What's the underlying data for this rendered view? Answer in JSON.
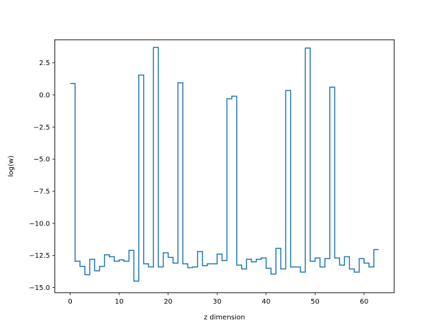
{
  "chart_data": {
    "type": "line",
    "drawstyle": "steps-post",
    "title": "",
    "xlabel": "z dimension",
    "ylabel": "log(w)",
    "xlim": [
      -3.15,
      66.15
    ],
    "ylim": [
      -15.4,
      4.3
    ],
    "x_ticks": [
      0,
      10,
      20,
      30,
      40,
      50,
      60
    ],
    "y_ticks": [
      -15.0,
      -12.5,
      -10.0,
      -7.5,
      -5.0,
      -2.5,
      0.0,
      2.5
    ],
    "x_tick_labels": [
      "0",
      "10",
      "20",
      "30",
      "40",
      "50",
      "60"
    ],
    "y_tick_labels": [
      "−15.0",
      "−12.5",
      "−10.0",
      "−7.5",
      "−5.0",
      "−2.5",
      "0.0",
      "2.5"
    ],
    "grid": false,
    "series": [
      {
        "color": "#1f77b4",
        "x": [
          0,
          1,
          2,
          3,
          4,
          5,
          6,
          7,
          8,
          9,
          10,
          11,
          12,
          13,
          14,
          15,
          16,
          17,
          18,
          19,
          20,
          21,
          22,
          23,
          24,
          25,
          26,
          27,
          28,
          29,
          30,
          31,
          32,
          33,
          34,
          35,
          36,
          37,
          38,
          39,
          40,
          41,
          42,
          43,
          44,
          45,
          46,
          47,
          48,
          49,
          50,
          51,
          52,
          53,
          54,
          55,
          56,
          57,
          58,
          59,
          60,
          61,
          62,
          63
        ],
        "values": [
          0.9,
          -12.95,
          -13.35,
          -14.0,
          -12.8,
          -13.7,
          -13.35,
          -12.45,
          -12.6,
          -12.95,
          -12.85,
          -12.95,
          -12.1,
          -14.5,
          1.55,
          -13.15,
          -13.4,
          3.7,
          -13.4,
          -12.3,
          -12.65,
          -13.1,
          0.95,
          -13.15,
          -13.45,
          -13.4,
          -12.2,
          -13.3,
          -13.15,
          -13.15,
          -12.4,
          -12.9,
          -0.3,
          -0.1,
          -13.25,
          -13.55,
          -12.8,
          -13.0,
          -12.8,
          -12.7,
          -13.5,
          -13.95,
          -11.95,
          -13.55,
          0.35,
          -13.4,
          -13.4,
          -13.8,
          3.65,
          -12.95,
          -12.7,
          -13.4,
          -12.75,
          0.6,
          -12.7,
          -13.25,
          -12.6,
          -13.55,
          -13.8,
          -12.75,
          -13.1,
          -13.4,
          -12.05,
          -12.05
        ]
      }
    ]
  }
}
